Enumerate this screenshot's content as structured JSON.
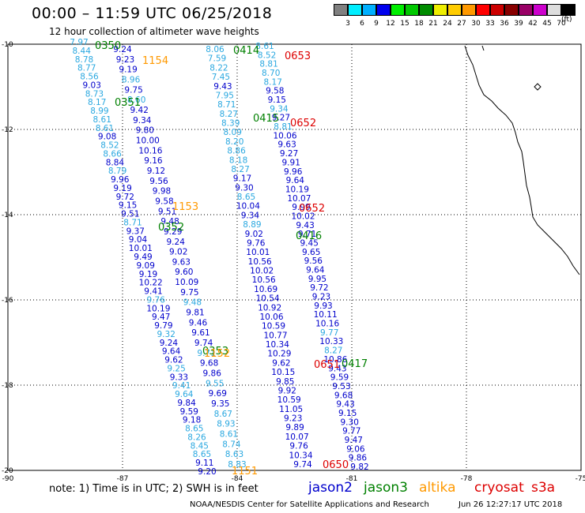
{
  "header": {
    "title": "00:00 – 11:59 UTC 06/25/2018",
    "subtitle": "12 hour collection of altimeter wave heights"
  },
  "color_scale": {
    "labels": [
      "3",
      "6",
      "9",
      "12",
      "15",
      "18",
      "21",
      "24",
      "27",
      "30",
      "33",
      "36",
      "39",
      "42",
      "45",
      "70"
    ],
    "unit": "(ft)",
    "colors": [
      "#808080",
      "#00eeff",
      "#00b0ff",
      "#0000ee",
      "#00ee00",
      "#00c800",
      "#008c00",
      "#eeee00",
      "#ffcc00",
      "#ff9900",
      "#ff0000",
      "#cc0000",
      "#880000",
      "#990066",
      "#cc00cc",
      "#dddddd",
      "#000000"
    ]
  },
  "axes": {
    "lat_labels": [
      "-10",
      "-12",
      "-14",
      "-16",
      "-18",
      "-20"
    ],
    "lon_labels": [
      "-90",
      "-87",
      "-84",
      "-81",
      "-78",
      "-75"
    ]
  },
  "track1": {
    "colA": [
      [
        "7.97",
        "c"
      ],
      [
        "8.44",
        "c"
      ],
      [
        "8.78",
        "c"
      ],
      [
        "8.77",
        "c"
      ],
      [
        "8.56",
        "c"
      ],
      [
        "9.03",
        "b"
      ],
      [
        "8.73",
        "c"
      ],
      [
        "8.17",
        "c"
      ],
      [
        "8.99",
        "c"
      ],
      [
        "8.61",
        "c"
      ],
      [
        "8.61",
        "c"
      ],
      [
        "9.08",
        "b"
      ],
      [
        "8.52",
        "c"
      ],
      [
        "8.66",
        "c"
      ],
      [
        "8.84",
        "b"
      ],
      [
        "8.79",
        "c"
      ],
      [
        "9.96",
        "b"
      ],
      [
        "9.19",
        "b"
      ],
      [
        "9.72",
        "b"
      ],
      [
        "9.15",
        "b"
      ],
      [
        "9.51",
        "b"
      ],
      [
        "8.71",
        "c"
      ],
      [
        "9.37",
        "b"
      ],
      [
        "9.04",
        "b"
      ],
      [
        "10.01",
        "b"
      ],
      [
        "9.49",
        "b"
      ],
      [
        "9.09",
        "b"
      ],
      [
        "9.19",
        "b"
      ],
      [
        "10.22",
        "b"
      ],
      [
        "9.41",
        "b"
      ],
      [
        "9.76",
        "c"
      ],
      [
        "10.19",
        "b"
      ],
      [
        "9.47",
        "b"
      ],
      [
        "9.79",
        "b"
      ],
      [
        "9.32",
        "c"
      ],
      [
        "9.24",
        "b"
      ],
      [
        "9.64",
        "b"
      ],
      [
        "9.62",
        "b"
      ],
      [
        "9.25",
        "c"
      ],
      [
        "9.33",
        "b"
      ],
      [
        "9.41",
        "c"
      ],
      [
        "9.64",
        "c"
      ],
      [
        "9.84",
        "b"
      ],
      [
        "9.59",
        "b"
      ],
      [
        "9.18",
        "b"
      ],
      [
        "8.65",
        "c"
      ],
      [
        "8.26",
        "c"
      ],
      [
        "8.45",
        "c"
      ],
      [
        "8.65",
        "c"
      ],
      [
        "9.11",
        "b"
      ],
      [
        "9.20",
        "b"
      ]
    ],
    "colB": [
      [
        "9.24",
        "b"
      ],
      [
        "9.23",
        "b"
      ],
      [
        "9.19",
        "b"
      ],
      [
        "8.96",
        "c"
      ],
      [
        "9.75",
        "b"
      ],
      [
        "8.60",
        "c"
      ],
      [
        "9.42",
        "b"
      ],
      [
        "9.34",
        "b"
      ],
      [
        "9.80",
        "b"
      ],
      [
        "10.00",
        "b"
      ],
      [
        "10.16",
        "b"
      ],
      [
        "9.16",
        "b"
      ],
      [
        "9.12",
        "b"
      ],
      [
        "9.56",
        "b"
      ],
      [
        "9.98",
        "b"
      ],
      [
        "9.58",
        "b"
      ],
      [
        "9.51",
        "b"
      ],
      [
        "9.48",
        "b"
      ],
      [
        "9.29",
        "b"
      ],
      [
        "9.24",
        "b"
      ],
      [
        "9.02",
        "b"
      ],
      [
        "9.63",
        "b"
      ],
      [
        "9.60",
        "b"
      ],
      [
        "10.09",
        "b"
      ],
      [
        "9.75",
        "b"
      ],
      [
        "9.48",
        "c"
      ],
      [
        "9.81",
        "b"
      ],
      [
        "9.46",
        "b"
      ],
      [
        "9.61",
        "b"
      ],
      [
        "9.74",
        "b"
      ],
      [
        "9.71",
        "c"
      ],
      [
        "9.68",
        "b"
      ],
      [
        "9.86",
        "b"
      ],
      [
        "9.55",
        "c"
      ],
      [
        "9.69",
        "b"
      ],
      [
        "9.35",
        "b"
      ],
      [
        "8.67",
        "c"
      ],
      [
        "8.93",
        "c"
      ],
      [
        "8.61",
        "c"
      ],
      [
        "8.74",
        "c"
      ],
      [
        "8.63",
        "c"
      ],
      [
        "8.83",
        "c"
      ]
    ],
    "colC": [
      [
        "8.61",
        "c"
      ],
      [
        "8.52",
        "c"
      ],
      [
        "8.81",
        "c"
      ],
      [
        "8.70",
        "c"
      ],
      [
        "8.17",
        "c"
      ],
      [
        "9.58",
        "b"
      ],
      [
        "9.15",
        "b"
      ],
      [
        "9.34",
        "c"
      ],
      [
        "9.27",
        "b"
      ],
      [
        "8.81",
        "c"
      ],
      [
        "10.06",
        "b"
      ],
      [
        "9.63",
        "b"
      ],
      [
        "9.27",
        "b"
      ],
      [
        "9.91",
        "b"
      ],
      [
        "9.96",
        "b"
      ],
      [
        "9.64",
        "b"
      ],
      [
        "10.19",
        "b"
      ],
      [
        "10.07",
        "b"
      ],
      [
        "9.99",
        "b"
      ],
      [
        "10.02",
        "b"
      ],
      [
        "9.43",
        "b"
      ],
      [
        "9.71",
        "b"
      ],
      [
        "9.45",
        "b"
      ],
      [
        "9.65",
        "b"
      ],
      [
        "9.56",
        "b"
      ],
      [
        "9.64",
        "b"
      ],
      [
        "9.95",
        "b"
      ],
      [
        "9.72",
        "b"
      ],
      [
        "9.23",
        "b"
      ],
      [
        "9.93",
        "b"
      ],
      [
        "10.11",
        "b"
      ],
      [
        "10.16",
        "b"
      ],
      [
        "9.77",
        "c"
      ],
      [
        "10.33",
        "b"
      ],
      [
        "8.27",
        "c"
      ],
      [
        "10.86",
        "b"
      ],
      [
        "9.43",
        "b"
      ],
      [
        "9.59",
        "b"
      ],
      [
        "9.53",
        "b"
      ],
      [
        "9.68",
        "b"
      ],
      [
        "9.43",
        "b"
      ],
      [
        "9.15",
        "b"
      ],
      [
        "9.30",
        "b"
      ],
      [
        "9.77",
        "b"
      ],
      [
        "9.47",
        "b"
      ],
      [
        "9.06",
        "b"
      ],
      [
        "9.86",
        "b"
      ],
      [
        "9.82",
        "b"
      ]
    ],
    "colD": [
      [
        "8.06",
        "c"
      ],
      [
        "7.59",
        "c"
      ],
      [
        "8.22",
        "c"
      ],
      [
        "7.45",
        "c"
      ],
      [
        "9.43",
        "b"
      ],
      [
        "7.95",
        "c"
      ],
      [
        "8.71",
        "c"
      ],
      [
        "8.27",
        "c"
      ],
      [
        "8.39",
        "c"
      ],
      [
        "8.09",
        "c"
      ],
      [
        "8.20",
        "c"
      ],
      [
        "8.86",
        "c"
      ],
      [
        "8.18",
        "c"
      ],
      [
        "8.27",
        "c"
      ],
      [
        "9.17",
        "b"
      ],
      [
        "9.30",
        "b"
      ],
      [
        "8.65",
        "c"
      ],
      [
        "10.04",
        "b"
      ],
      [
        "9.34",
        "b"
      ],
      [
        "8.89",
        "c"
      ],
      [
        "9.02",
        "b"
      ],
      [
        "9.76",
        "b"
      ],
      [
        "10.01",
        "b"
      ],
      [
        "10.56",
        "b"
      ],
      [
        "10.02",
        "b"
      ],
      [
        "10.56",
        "b"
      ],
      [
        "10.69",
        "b"
      ],
      [
        "10.54",
        "b"
      ],
      [
        "10.92",
        "b"
      ],
      [
        "10.06",
        "b"
      ],
      [
        "10.59",
        "b"
      ],
      [
        "10.77",
        "b"
      ],
      [
        "10.34",
        "b"
      ],
      [
        "10.29",
        "b"
      ],
      [
        "9.62",
        "b"
      ],
      [
        "10.15",
        "b"
      ],
      [
        "9.85",
        "b"
      ],
      [
        "9.92",
        "b"
      ],
      [
        "10.59",
        "b"
      ],
      [
        "11.05",
        "b"
      ],
      [
        "9.23",
        "b"
      ],
      [
        "9.89",
        "b"
      ],
      [
        "10.07",
        "b"
      ],
      [
        "9.76",
        "b"
      ],
      [
        "10.34",
        "b"
      ],
      [
        "9.74",
        "b"
      ]
    ]
  },
  "time_tags": [
    {
      "text": "0350",
      "color": "#008000"
    },
    {
      "text": "1154",
      "color": "#ff9900"
    },
    {
      "text": "0351",
      "color": "#008000"
    },
    {
      "text": "1153",
      "color": "#ff9900"
    },
    {
      "text": "0352",
      "color": "#008000"
    },
    {
      "text": "0353",
      "color": "#008000"
    },
    {
      "text": "1152",
      "color": "#ff9900"
    },
    {
      "text": "1151",
      "color": "#ff9900"
    },
    {
      "text": "0414",
      "color": "#008000"
    },
    {
      "text": "0653",
      "color": "#dd0000"
    },
    {
      "text": "0415",
      "color": "#008000"
    },
    {
      "text": "0652",
      "color": "#dd0000"
    },
    {
      "text": "0652",
      "color": "#dd0000"
    },
    {
      "text": "0416",
      "color": "#008000"
    },
    {
      "text": "0651",
      "color": "#dd0000"
    },
    {
      "text": "0417",
      "color": "#008000"
    },
    {
      "text": "0650",
      "color": "#dd0000"
    }
  ],
  "footer": {
    "note": "note:  1) Time is in UTC;  2) SWH is in feet",
    "legend": [
      {
        "label": "jason2",
        "color": "#0000cc"
      },
      {
        "label": "jason3",
        "color": "#008000"
      },
      {
        "label": "altika",
        "color": "#ff9900"
      },
      {
        "label": "cryosat",
        "color": "#dd0000"
      },
      {
        "label": "s3a",
        "color": "#dd0000"
      }
    ],
    "org": "NOAA/NESDIS Center for Satellite Applications and Research",
    "timestamp": "Jun 26 12:27:17 UTC 2018"
  }
}
